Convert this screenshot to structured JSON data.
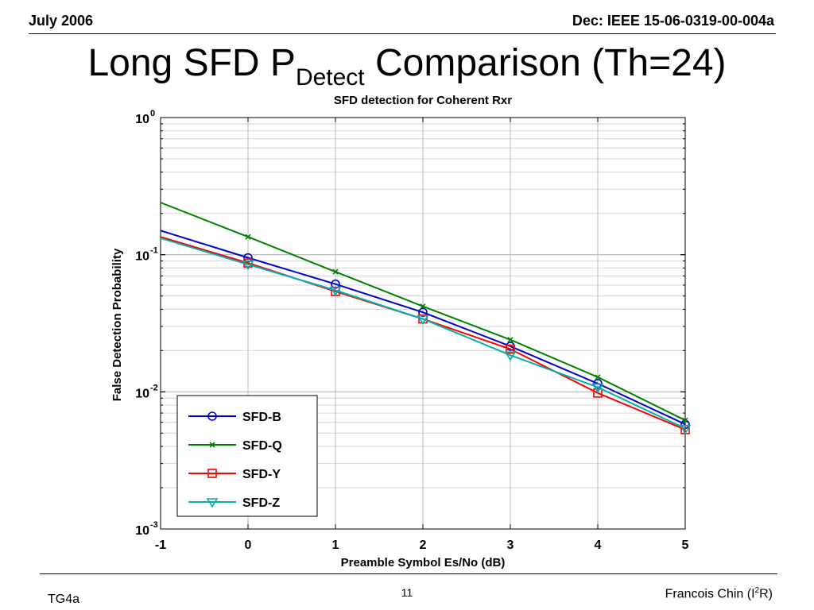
{
  "header": {
    "date": "July 2006",
    "doc_id": "Dec: IEEE 15-06-0319-00-004a"
  },
  "slide": {
    "title_main": "Long SFD P",
    "title_sub": "Detect",
    "title_rest": " Comparison (Th=24)"
  },
  "footer": {
    "left": "TG4a",
    "page": "11",
    "author_pre": "Francois Chin (I",
    "author_sup": "2",
    "author_post": "R)"
  },
  "chart_data": {
    "type": "line",
    "title": "SFD detection for Coherent Rxr",
    "xlabel": "Preamble Symbol Es/No (dB)",
    "ylabel": "False Detection Probability",
    "xlim": [
      -1,
      5
    ],
    "ylim": [
      0.001,
      1
    ],
    "yscale": "log",
    "x_ticks": [
      "-1",
      "0",
      "1",
      "2",
      "3",
      "4",
      "5"
    ],
    "y_ticks": [
      {
        "base": "10",
        "exp": "0"
      },
      {
        "base": "10",
        "exp": "-1"
      },
      {
        "base": "10",
        "exp": "-2"
      },
      {
        "base": "10",
        "exp": "-3"
      }
    ],
    "grid": true,
    "legend_position": "bottom-left",
    "x": [
      -1,
      0,
      1,
      2,
      3,
      4,
      5
    ],
    "series": [
      {
        "name": "SFD-B",
        "color": "#0000cc",
        "marker": "circle",
        "values": [
          0.15,
          0.095,
          0.061,
          0.038,
          0.0215,
          0.0115,
          0.0058
        ]
      },
      {
        "name": "SFD-Q",
        "color": "#008000",
        "marker": "x",
        "values": [
          0.24,
          0.135,
          0.075,
          0.042,
          0.024,
          0.0128,
          0.0062
        ]
      },
      {
        "name": "SFD-Y",
        "color": "#ff0000",
        "marker": "square",
        "values": [
          0.135,
          0.087,
          0.054,
          0.034,
          0.0205,
          0.0098,
          0.0053
        ]
      },
      {
        "name": "SFD-Z",
        "color": "#00b0b0",
        "marker": "triangle-down",
        "values": [
          0.132,
          0.085,
          0.055,
          0.034,
          0.0185,
          0.0108,
          0.0054
        ]
      }
    ]
  }
}
